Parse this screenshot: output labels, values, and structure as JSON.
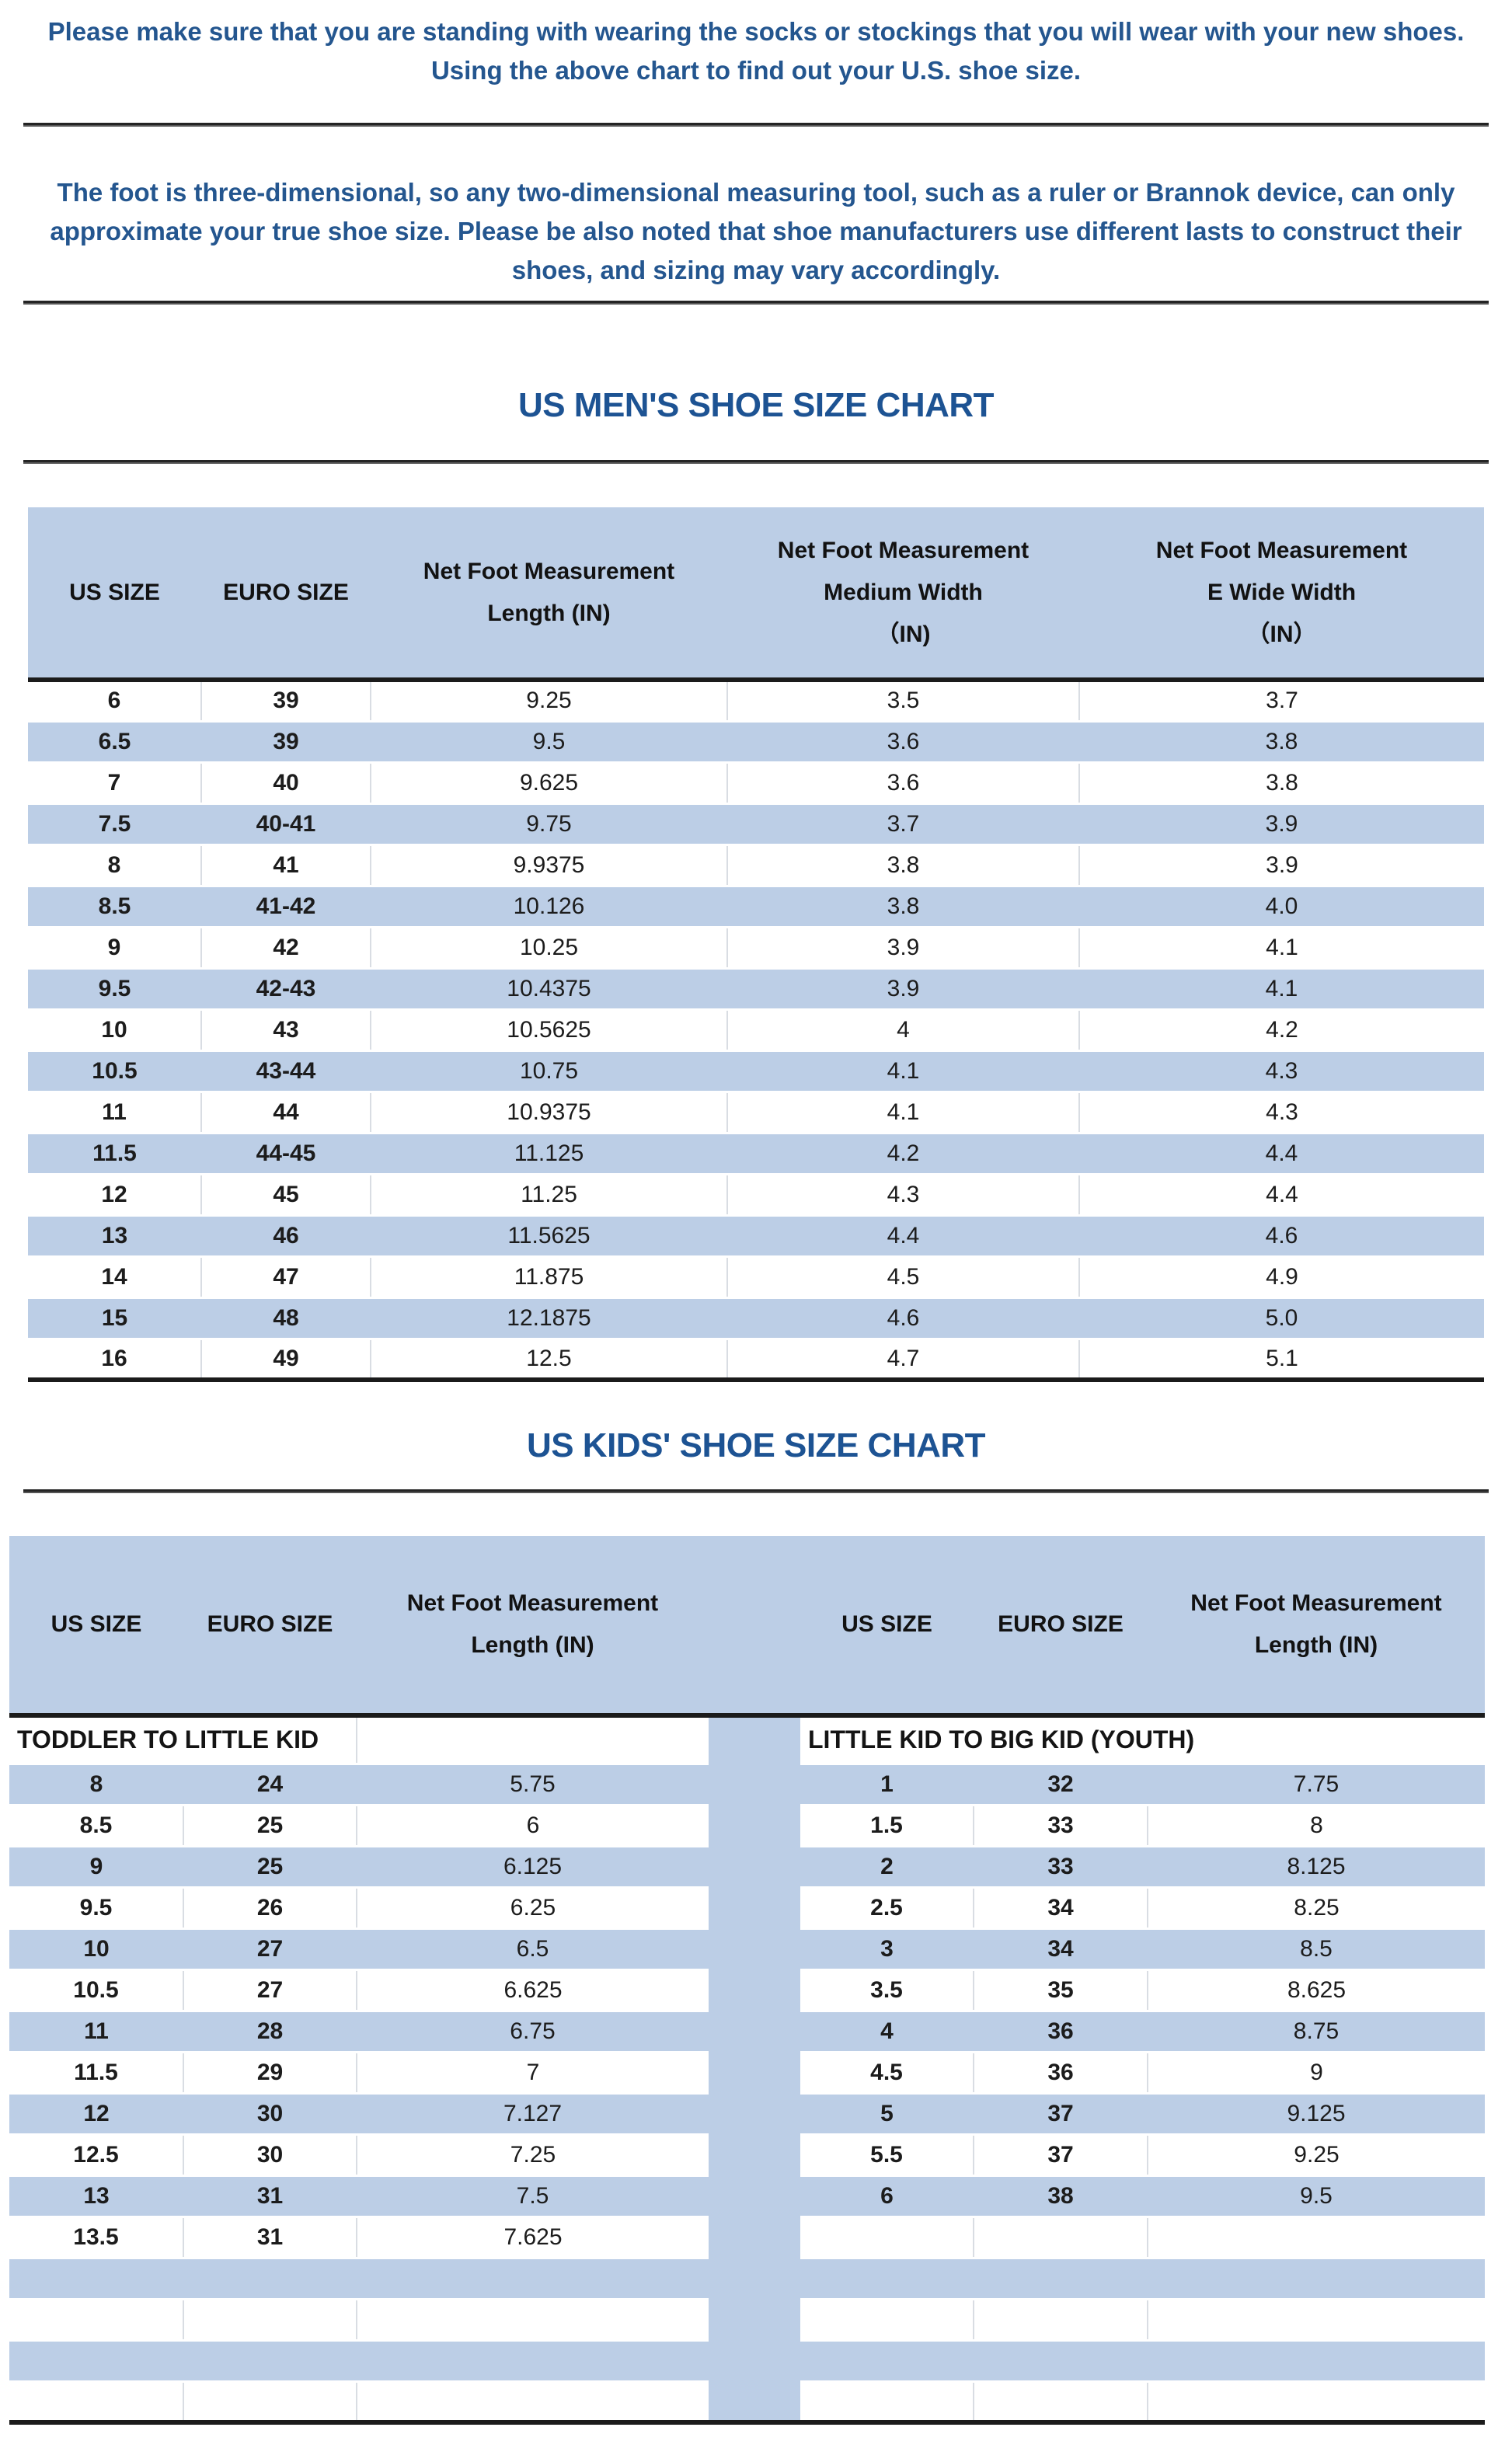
{
  "intro": {
    "line1": "Please make sure that you are standing with wearing the socks or stockings that you will wear with your new shoes.",
    "line2": "Using the above chart to find out your U.S. shoe size.",
    "note_line1": "The foot is three-dimensional, so any two-dimensional measuring tool, such as a ruler or Brannok device, can only",
    "note_line2": "approximate your true shoe size. Please be also noted that shoe manufacturers use different lasts to construct their",
    "note_line3": "shoes, and sizing may vary accordingly."
  },
  "mens_chart": {
    "title": "US MEN'S SHOE SIZE CHART",
    "columns": [
      "US SIZE",
      "EURO SIZE",
      "Net Foot Measurement\nLength (IN)",
      "Net Foot Measurement\nMedium Width\n（IN)",
      "Net Foot Measurement\nE Wide Width\n（IN）"
    ],
    "rows": [
      [
        "6",
        "39",
        "9.25",
        "3.5",
        "3.7"
      ],
      [
        "6.5",
        "39",
        "9.5",
        "3.6",
        "3.8"
      ],
      [
        "7",
        "40",
        "9.625",
        "3.6",
        "3.8"
      ],
      [
        "7.5",
        "40-41",
        "9.75",
        "3.7",
        "3.9"
      ],
      [
        "8",
        "41",
        "9.9375",
        "3.8",
        "3.9"
      ],
      [
        "8.5",
        "41-42",
        "10.126",
        "3.8",
        "4.0"
      ],
      [
        "9",
        "42",
        "10.25",
        "3.9",
        "4.1"
      ],
      [
        "9.5",
        "42-43",
        "10.4375",
        "3.9",
        "4.1"
      ],
      [
        "10",
        "43",
        "10.5625",
        "4",
        "4.2"
      ],
      [
        "10.5",
        "43-44",
        "10.75",
        "4.1",
        "4.3"
      ],
      [
        "11",
        "44",
        "10.9375",
        "4.1",
        "4.3"
      ],
      [
        "11.5",
        "44-45",
        "11.125",
        "4.2",
        "4.4"
      ],
      [
        "12",
        "45",
        "11.25",
        "4.3",
        "4.4"
      ],
      [
        "13",
        "46",
        "11.5625",
        "4.4",
        "4.6"
      ],
      [
        "14",
        "47",
        "11.875",
        "4.5",
        "4.9"
      ],
      [
        "15",
        "48",
        "12.1875",
        "4.6",
        "5.0"
      ],
      [
        "16",
        "49",
        "12.5",
        "4.7",
        "5.1"
      ]
    ]
  },
  "kids_chart": {
    "title": "US KIDS' SHOE SIZE CHART",
    "columns": [
      "US SIZE",
      "EURO SIZE",
      "Net Foot Measurement\nLength (IN)",
      "US SIZE",
      "EURO SIZE",
      "Net Foot Measurement\nLength (IN)"
    ],
    "left_group_label": "TODDLER TO LITTLE KID",
    "right_group_label": "LITTLE KID TO BIG KID (YOUTH)",
    "rows": [
      {
        "left": [
          "8",
          "24",
          "5.75"
        ],
        "right": [
          "1",
          "32",
          "7.75"
        ]
      },
      {
        "left": [
          "8.5",
          "25",
          "6"
        ],
        "right": [
          "1.5",
          "33",
          "8"
        ]
      },
      {
        "left": [
          "9",
          "25",
          "6.125"
        ],
        "right": [
          "2",
          "33",
          "8.125"
        ]
      },
      {
        "left": [
          "9.5",
          "26",
          "6.25"
        ],
        "right": [
          "2.5",
          "34",
          "8.25"
        ]
      },
      {
        "left": [
          "10",
          "27",
          "6.5"
        ],
        "right": [
          "3",
          "34",
          "8.5"
        ]
      },
      {
        "left": [
          "10.5",
          "27",
          "6.625"
        ],
        "right": [
          "3.5",
          "35",
          "8.625"
        ]
      },
      {
        "left": [
          "11",
          "28",
          "6.75"
        ],
        "right": [
          "4",
          "36",
          "8.75"
        ]
      },
      {
        "left": [
          "11.5",
          "29",
          "7"
        ],
        "right": [
          "4.5",
          "36",
          "9"
        ]
      },
      {
        "left": [
          "12",
          "30",
          "7.127"
        ],
        "right": [
          "5",
          "37",
          "9.125"
        ]
      },
      {
        "left": [
          "12.5",
          "30",
          "7.25"
        ],
        "right": [
          "5.5",
          "37",
          "9.25"
        ]
      },
      {
        "left": [
          "13",
          "31",
          "7.5"
        ],
        "right": [
          "6",
          "38",
          "9.5"
        ]
      },
      {
        "left": [
          "13.5",
          "31",
          "7.625"
        ],
        "right": [
          "",
          "",
          ""
        ]
      },
      {
        "left": [
          "",
          "",
          ""
        ],
        "right": [
          "",
          "",
          ""
        ]
      },
      {
        "left": [
          "",
          "",
          ""
        ],
        "right": [
          "",
          "",
          ""
        ]
      },
      {
        "left": [
          "",
          "",
          ""
        ],
        "right": [
          "",
          "",
          ""
        ]
      },
      {
        "left": [
          "",
          "",
          ""
        ],
        "right": [
          "",
          "",
          ""
        ]
      }
    ]
  }
}
